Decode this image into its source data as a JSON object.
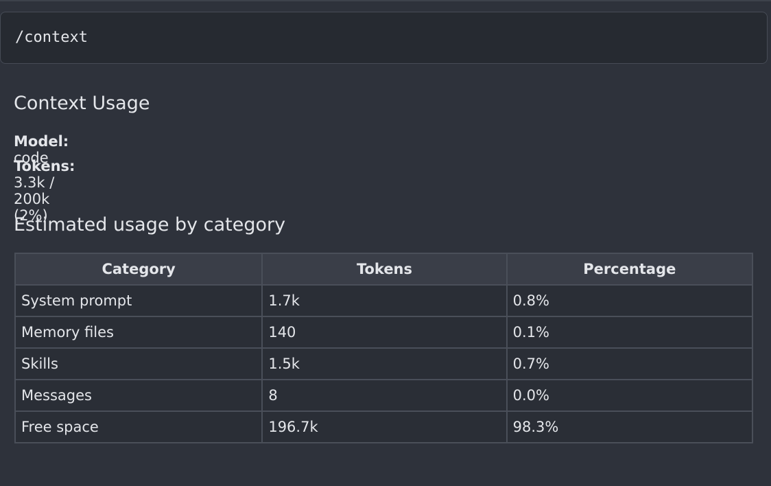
{
  "command": "/context",
  "heading": "Context Usage",
  "info": [
    {
      "label": "Model:",
      "value": "code"
    },
    {
      "label": "Tokens:",
      "value": "3.3k / 200k (2%)"
    }
  ],
  "table": {
    "title": "Estimated usage by category",
    "header": [
      "Category",
      "Tokens",
      "Percentage"
    ],
    "rows": [
      [
        "System prompt",
        "1.7k",
        "0.8%"
      ],
      [
        "Memory files",
        "140",
        "0.1%"
      ],
      [
        "Skills",
        "1.5k",
        "0.7%"
      ],
      [
        "Messages",
        "8",
        "0.0%"
      ],
      [
        "Free space",
        "196.7k",
        "98.3%"
      ]
    ]
  }
}
